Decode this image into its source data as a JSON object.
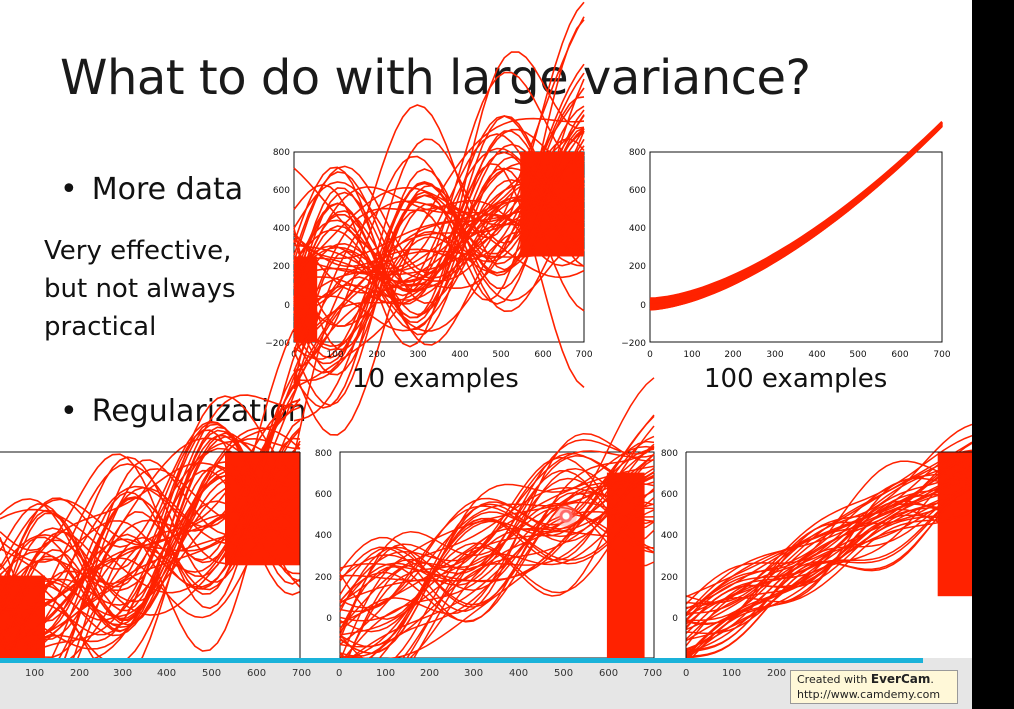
{
  "slide": {
    "title": "What to do with large variance?",
    "bullet_more_data": "More data",
    "bullet_regularization": "Regularization",
    "bullet_char": "•",
    "note_lines": [
      "Very effective,",
      "but not always",
      "practical"
    ],
    "caption_10": "10 examples",
    "caption_100": "100 examples"
  },
  "plots": {
    "y_ticks": [
      "800",
      "600",
      "400",
      "200",
      "0",
      "−200"
    ],
    "x_ticks": [
      "0",
      "100",
      "200",
      "300",
      "400",
      "500",
      "600",
      "700"
    ],
    "curve_color": "#ff2200"
  },
  "controls": {
    "x_ticks": [
      "100",
      "200",
      "300",
      "400",
      "500",
      "600",
      "700",
      "0",
      "100",
      "200",
      "300",
      "400",
      "500",
      "600",
      "700",
      "0",
      "100",
      "200"
    ],
    "progress_percent": 95,
    "progress_color": "#1ab2d9"
  },
  "watermark": {
    "prefix": "Created with",
    "brand": "EverCam",
    "suffix": ".",
    "url": "http://www.camdemy.com"
  }
}
